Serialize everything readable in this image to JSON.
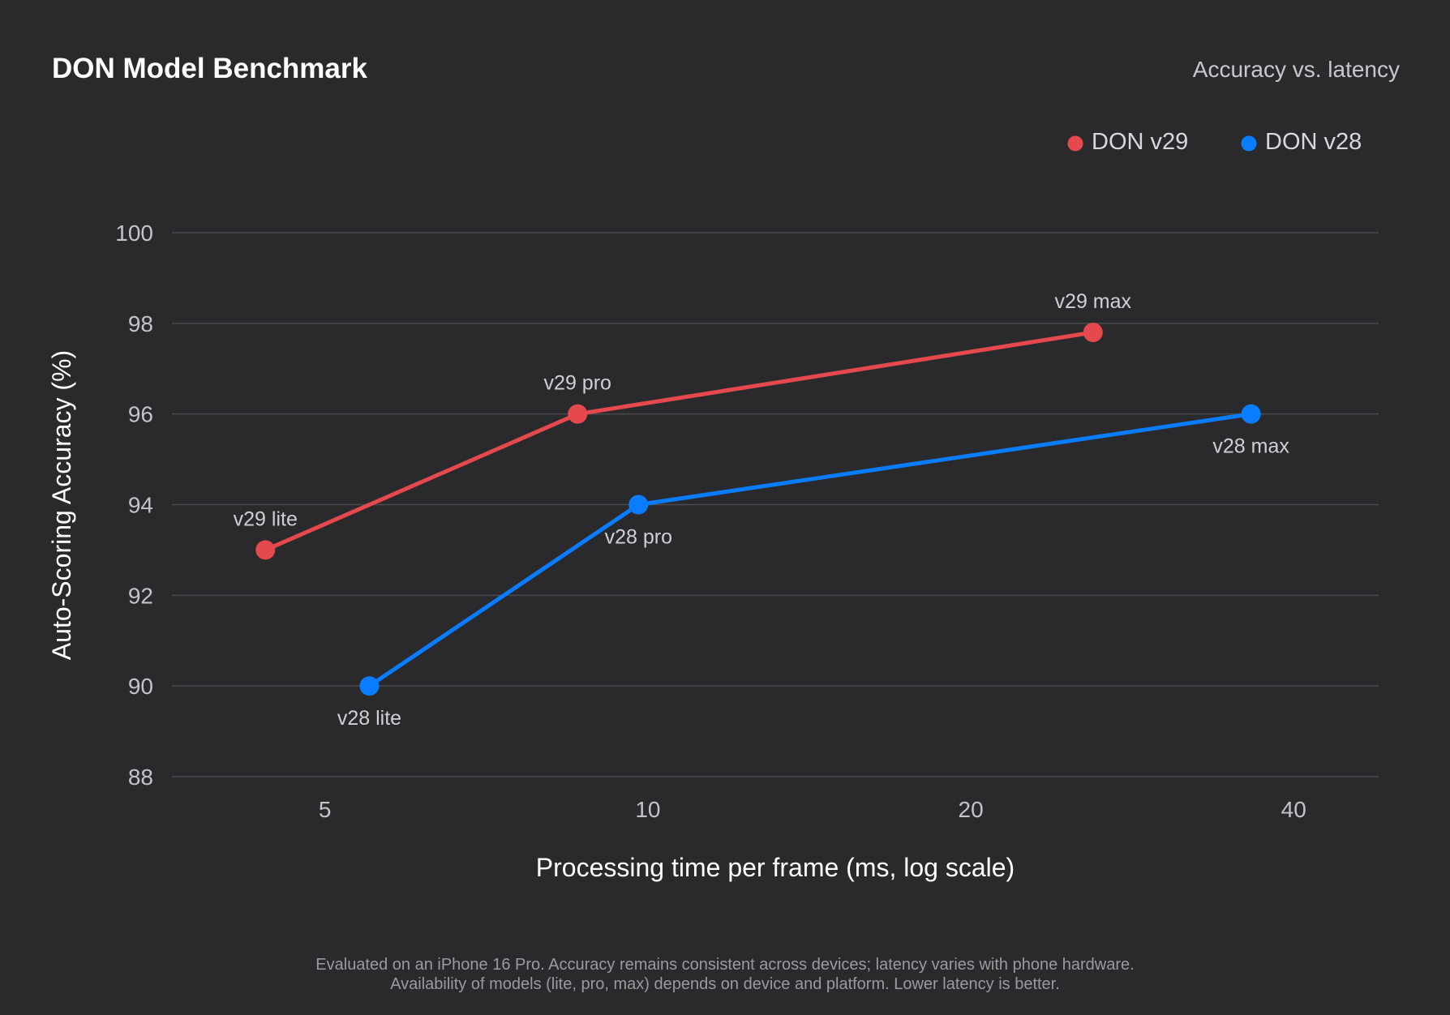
{
  "header": {
    "title": "DON Model Benchmark",
    "subtitle": "Accuracy vs. latency"
  },
  "footnote": {
    "line1": "Evaluated on an iPhone 16 Pro. Accuracy remains consistent across devices; latency varies with phone hardware.",
    "line2": "Availability of models (lite, pro, max) depends on device and platform. Lower latency is better."
  },
  "chart_data": {
    "type": "line",
    "title": "DON Model Benchmark",
    "subtitle": "Accuracy vs. latency",
    "xlabel": "Processing time per frame (ms, log scale)",
    "ylabel": "Auto-Scoring Accuracy (%)",
    "xscale": "log",
    "xlim": [
      3.6,
      48
    ],
    "ylim": [
      88,
      100
    ],
    "xticks": [
      5,
      10,
      20,
      40
    ],
    "yticks": [
      88,
      90,
      92,
      94,
      96,
      98,
      100
    ],
    "grid": "horizontal",
    "legend_position": "top-right",
    "series": [
      {
        "name": "DON v29",
        "color": "#e5484d",
        "points": [
          {
            "label": "v29 lite",
            "x": 4.4,
            "y": 93.0,
            "label_pos": "above"
          },
          {
            "label": "v29 pro",
            "x": 8.6,
            "y": 96.0,
            "label_pos": "above"
          },
          {
            "label": "v29 max",
            "x": 26.0,
            "y": 97.8,
            "label_pos": "above"
          }
        ]
      },
      {
        "name": "DON v28",
        "color": "#0a7cff",
        "points": [
          {
            "label": "v28 lite",
            "x": 5.5,
            "y": 90.0,
            "label_pos": "below"
          },
          {
            "label": "v28 pro",
            "x": 9.8,
            "y": 94.0,
            "label_pos": "below"
          },
          {
            "label": "v28 max",
            "x": 36.5,
            "y": 96.0,
            "label_pos": "below"
          }
        ]
      }
    ]
  }
}
